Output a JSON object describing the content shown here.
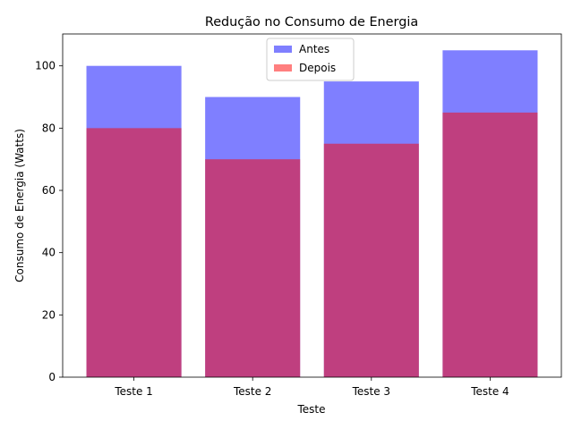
{
  "chart_data": {
    "type": "bar",
    "title": "Redução no Consumo de Energia",
    "xlabel": "Teste",
    "ylabel": "Consumo de Energia (Watts)",
    "categories": [
      "Teste 1",
      "Teste 2",
      "Teste 3",
      "Teste 4"
    ],
    "series": [
      {
        "name": "Antes",
        "values": [
          100,
          90,
          95,
          105
        ],
        "color": "#0000ff",
        "alpha": 0.5
      },
      {
        "name": "Depois",
        "values": [
          80,
          70,
          75,
          85
        ],
        "color": "#ff0000",
        "alpha": 0.5
      }
    ],
    "ylim": [
      0,
      110.25
    ],
    "yticks": [
      0,
      20,
      40,
      60,
      80,
      100
    ],
    "bars_overlaid": true,
    "legend_position": "top-center",
    "grid": false
  }
}
